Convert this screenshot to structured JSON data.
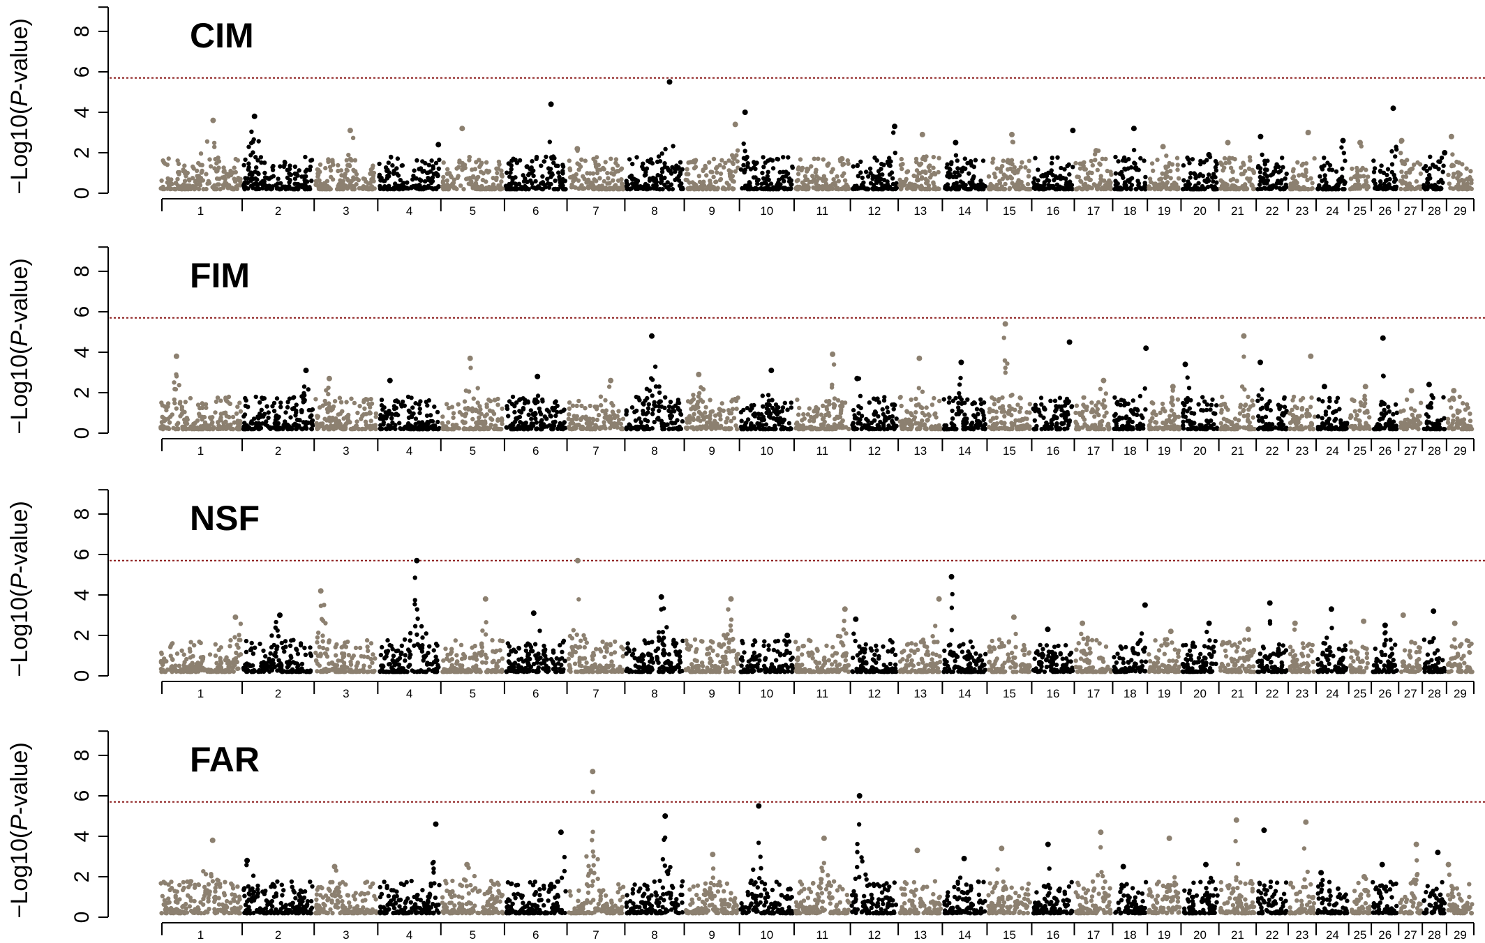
{
  "chart_data": [
    {
      "type": "scatter",
      "subtype": "manhattan",
      "title": "CIM",
      "ylabel": "−Log10(P-value)",
      "ylim": [
        0,
        9.5
      ],
      "yticks": [
        0,
        2,
        4,
        6,
        8
      ],
      "threshold": 5.7,
      "categories": [
        "1",
        "2",
        "3",
        "4",
        "5",
        "6",
        "7",
        "8",
        "9",
        "10",
        "11",
        "12",
        "13",
        "14",
        "15",
        "16",
        "17",
        "18",
        "19",
        "20",
        "21",
        "22",
        "23",
        "24",
        "25",
        "26",
        "27",
        "28",
        "29"
      ],
      "colors": {
        "odd": "#8c8070",
        "even": "#000000",
        "threshold": "#8b1a1a"
      },
      "chromosome_peaks": [
        3.6,
        3.8,
        3.1,
        2.4,
        3.2,
        4.4,
        2.2,
        5.5,
        3.4,
        4.0,
        1.7,
        3.3,
        2.9,
        2.5,
        2.9,
        3.1,
        2.1,
        3.2,
        2.3,
        1.9,
        2.5,
        2.8,
        3.0,
        2.6,
        2.5,
        4.2,
        2.6,
        2.0,
        2.8
      ]
    },
    {
      "type": "scatter",
      "subtype": "manhattan",
      "title": "FIM",
      "ylabel": "−Log10(P-value)",
      "ylim": [
        0,
        9.5
      ],
      "yticks": [
        0,
        2,
        4,
        6,
        8
      ],
      "threshold": 5.7,
      "categories": [
        "1",
        "2",
        "3",
        "4",
        "5",
        "6",
        "7",
        "8",
        "9",
        "10",
        "11",
        "12",
        "13",
        "14",
        "15",
        "16",
        "17",
        "18",
        "19",
        "20",
        "21",
        "22",
        "23",
        "24",
        "25",
        "26",
        "27",
        "28",
        "29"
      ],
      "colors": {
        "odd": "#8c8070",
        "even": "#000000",
        "threshold": "#8b1a1a"
      },
      "chromosome_peaks": [
        3.8,
        3.1,
        2.7,
        2.6,
        3.7,
        2.8,
        2.6,
        4.8,
        2.9,
        3.1,
        3.9,
        2.7,
        3.7,
        3.5,
        5.4,
        4.5,
        2.6,
        4.2,
        2.3,
        3.4,
        4.8,
        3.5,
        3.8,
        2.3,
        2.3,
        4.7,
        2.1,
        2.4,
        2.1
      ]
    },
    {
      "type": "scatter",
      "subtype": "manhattan",
      "title": "NSF",
      "ylabel": "−Log10(P-value)",
      "ylim": [
        0,
        9.5
      ],
      "yticks": [
        0,
        2,
        4,
        6,
        8
      ],
      "threshold": 5.7,
      "categories": [
        "1",
        "2",
        "3",
        "4",
        "5",
        "6",
        "7",
        "8",
        "9",
        "10",
        "11",
        "12",
        "13",
        "14",
        "15",
        "16",
        "17",
        "18",
        "19",
        "20",
        "21",
        "22",
        "23",
        "24",
        "25",
        "26",
        "27",
        "28",
        "29"
      ],
      "colors": {
        "odd": "#8c8070",
        "even": "#000000",
        "threshold": "#8b1a1a"
      },
      "chromosome_peaks": [
        2.9,
        3.0,
        4.2,
        5.7,
        3.8,
        3.1,
        5.7,
        3.9,
        3.8,
        2.0,
        3.3,
        2.8,
        3.8,
        4.9,
        2.9,
        2.3,
        2.6,
        3.5,
        2.2,
        2.6,
        2.3,
        3.6,
        2.6,
        3.3,
        2.7,
        2.5,
        3.0,
        3.2,
        2.6
      ]
    },
    {
      "type": "scatter",
      "subtype": "manhattan",
      "title": "FAR",
      "ylabel": "−Log10(P-value)",
      "ylim": [
        0,
        9.5
      ],
      "yticks": [
        0,
        2,
        4,
        6,
        8
      ],
      "threshold": 5.7,
      "categories": [
        "1",
        "2",
        "3",
        "4",
        "5",
        "6",
        "7",
        "8",
        "9",
        "10",
        "11",
        "12",
        "13",
        "14",
        "15",
        "16",
        "17",
        "18",
        "19",
        "20",
        "21",
        "22",
        "23",
        "24",
        "25",
        "26",
        "27",
        "28",
        "29"
      ],
      "colors": {
        "odd": "#8c8070",
        "even": "#000000",
        "threshold": "#8b1a1a"
      },
      "chromosome_peaks": [
        3.8,
        2.8,
        2.5,
        4.6,
        2.6,
        4.2,
        7.2,
        5.0,
        3.1,
        5.5,
        3.9,
        6.0,
        3.3,
        2.9,
        3.4,
        3.6,
        4.2,
        2.5,
        3.9,
        2.6,
        4.8,
        4.3,
        4.7,
        2.2,
        2.0,
        2.6,
        3.6,
        3.2,
        2.6
      ]
    }
  ]
}
